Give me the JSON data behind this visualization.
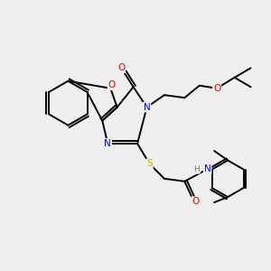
{
  "bg_color": "#efefef",
  "atom_colors": {
    "C": "#000000",
    "N": "#0000ee",
    "O": "#ee0000",
    "S": "#bbbb00",
    "H": "#777777"
  },
  "bond_color": "#000000",
  "bond_width": 1.4,
  "figsize": [
    3.0,
    3.0
  ],
  "dpi": 100
}
